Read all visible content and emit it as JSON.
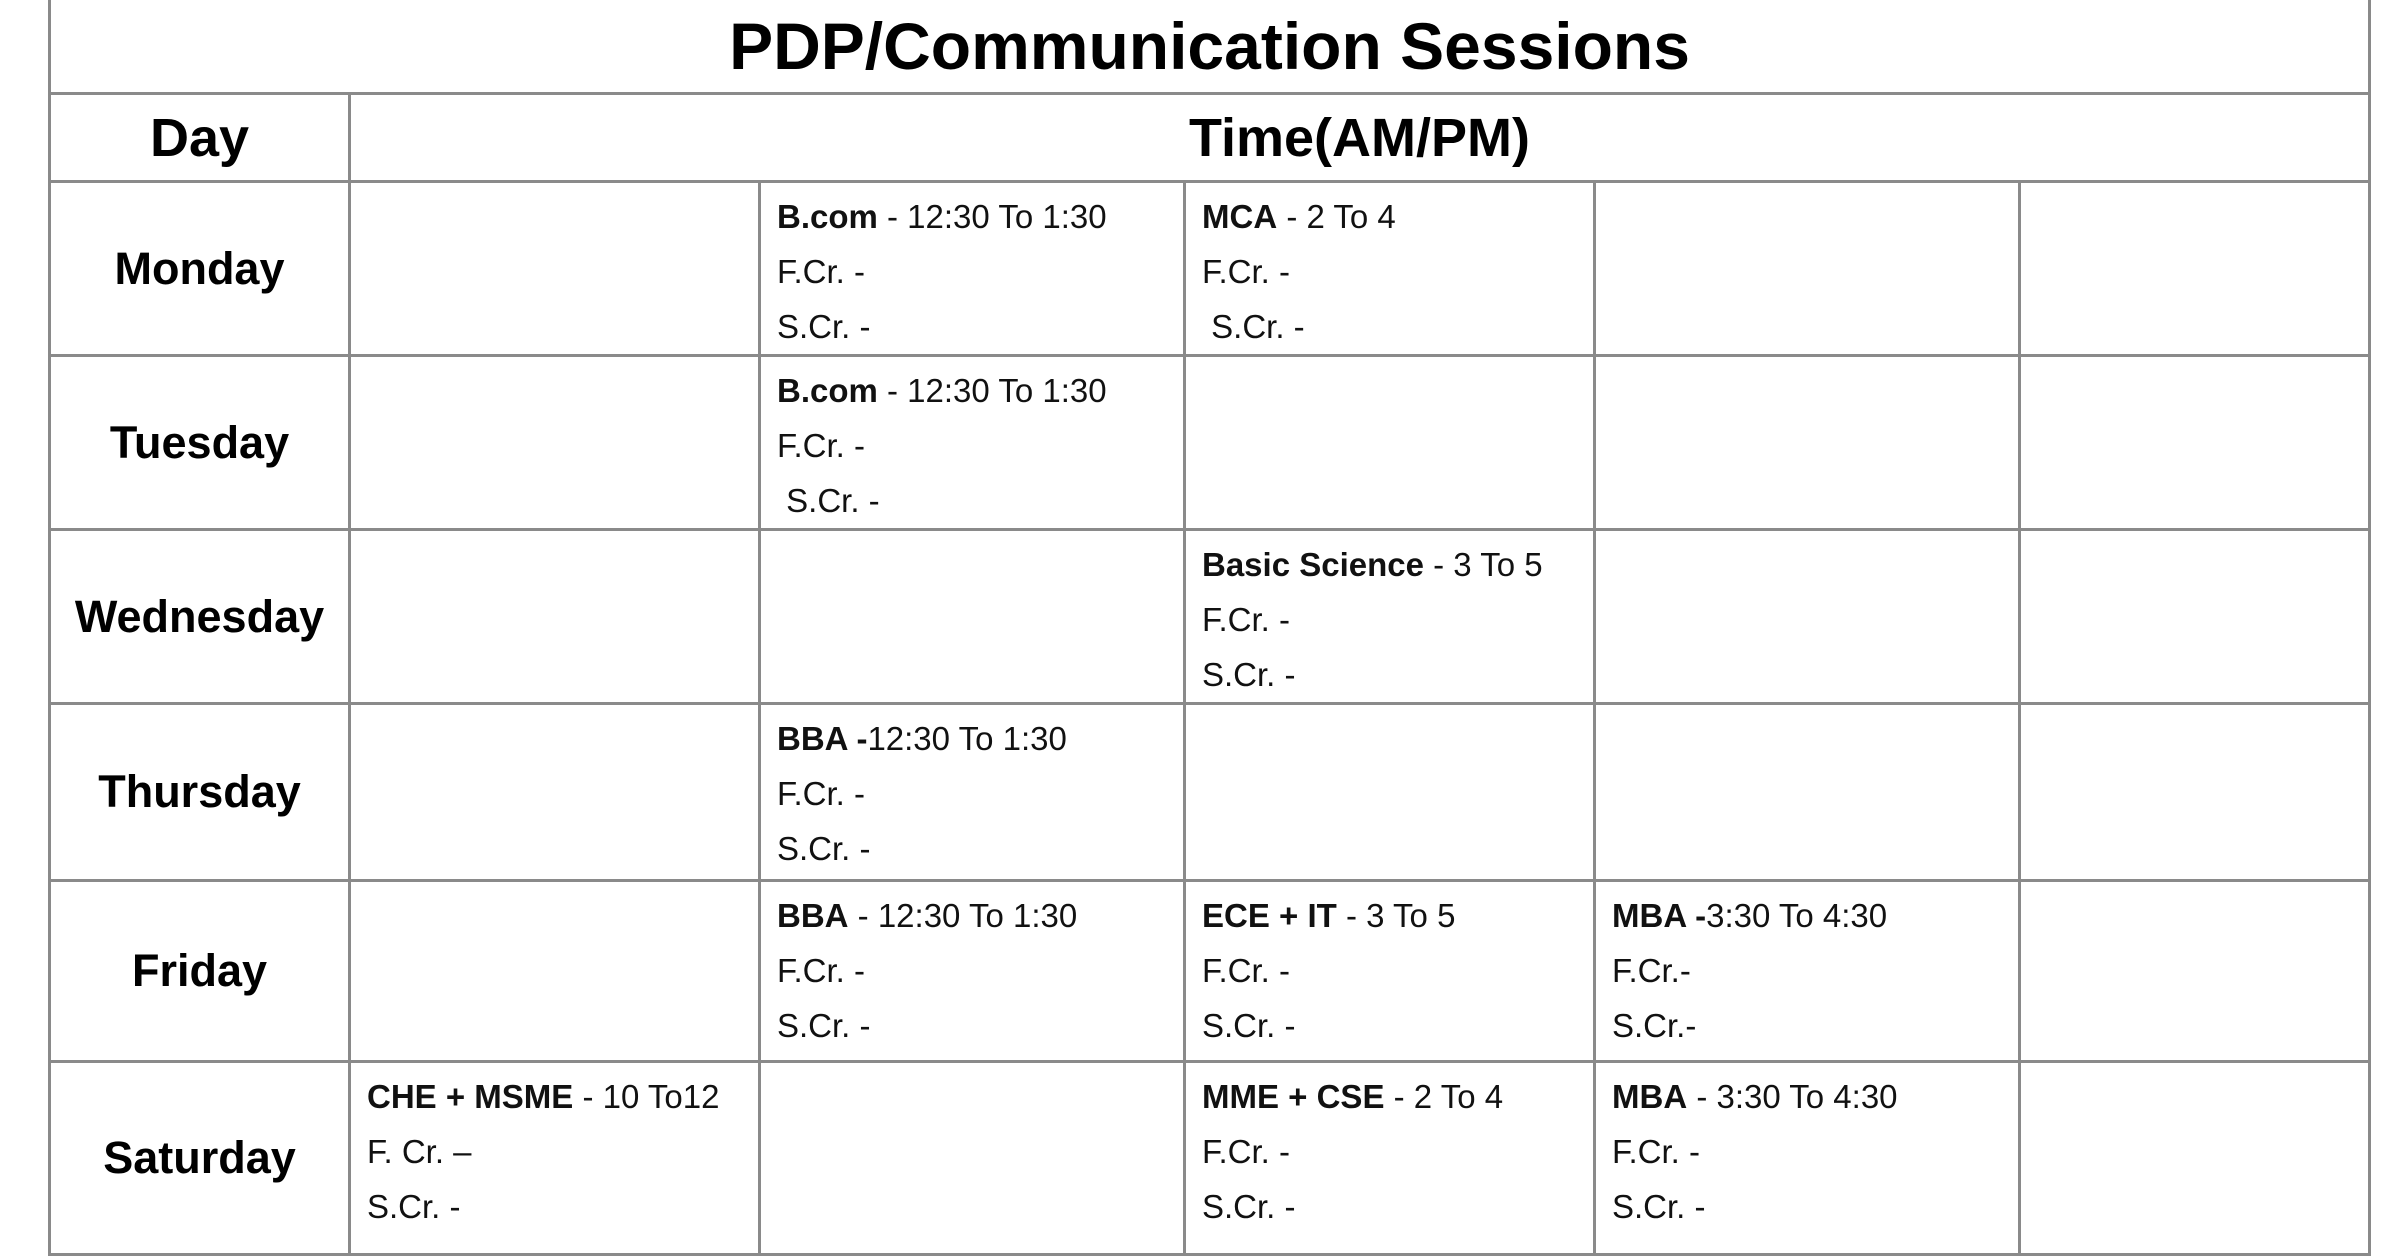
{
  "title": "PDP/Communication Sessions",
  "headers": {
    "day": "Day",
    "time": "Time(AM/PM)"
  },
  "rows": [
    {
      "day": "Monday",
      "slots": [
        null,
        {
          "program": "B.com",
          "time": " - 12:30 To 1:30",
          "first": "F.Cr. -",
          "second": "S.Cr. -"
        },
        {
          "program": "MCA",
          "time": " - 2 To 4",
          "first": "F.Cr. -",
          "second": " S.Cr. -"
        },
        null,
        null
      ]
    },
    {
      "day": "Tuesday",
      "slots": [
        null,
        {
          "program": "B.com",
          "time": " - 12:30 To 1:30",
          "first": "F.Cr. -",
          "second": " S.Cr. -"
        },
        null,
        null,
        null
      ]
    },
    {
      "day": "Wednesday",
      "slots": [
        null,
        null,
        {
          "program": "Basic Science",
          "time": " - 3 To 5",
          "first": "F.Cr. -",
          "second": "S.Cr. -"
        },
        null,
        null
      ]
    },
    {
      "day": "Thursday",
      "slots": [
        null,
        {
          "program": "BBA -",
          "time": "12:30 To 1:30",
          "first": "F.Cr. -",
          "second": "S.Cr. -"
        },
        null,
        null,
        null
      ]
    },
    {
      "day": "Friday",
      "slots": [
        null,
        {
          "program": "BBA",
          "time": " - 12:30 To 1:30",
          "first": "F.Cr. -",
          "second": "S.Cr. -"
        },
        {
          "program": "ECE + IT",
          "time": " - 3 To 5",
          "first": "F.Cr. -",
          "second": "S.Cr. -"
        },
        {
          "program": "MBA -",
          "time": "3:30 To 4:30",
          "first": "F.Cr.-",
          "second": "S.Cr.-"
        },
        null
      ]
    },
    {
      "day": "Saturday",
      "slots": [
        {
          "program": "CHE + MSME",
          "time": " - 10 To12",
          "first": "F. Cr. –",
          "second": "S.Cr. -"
        },
        null,
        {
          "program": "MME + CSE",
          "time": " - 2 To 4",
          "first": "F.Cr. -",
          "second": "S.Cr. -"
        },
        {
          "program": "MBA",
          "time": " - 3:30 To 4:30",
          "first": "F.Cr. -",
          "second": "S.Cr. -"
        },
        null
      ]
    }
  ]
}
